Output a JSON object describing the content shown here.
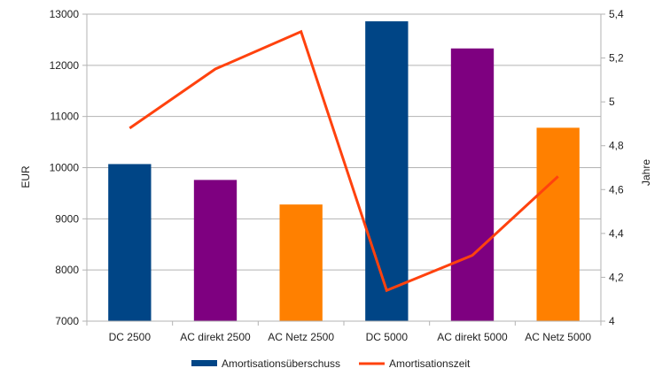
{
  "chart_data": {
    "type": "bar",
    "title": "",
    "categories": [
      "DC 2500",
      "AC direkt 2500",
      "AC Netz 2500",
      "DC 5000",
      "AC direkt 5000",
      "AC Netz 5000"
    ],
    "series": [
      {
        "name": "Amortisationsüberschuss",
        "type": "bar",
        "axis": "left",
        "values": [
          10070,
          9760,
          9280,
          12860,
          12330,
          10780
        ],
        "colors": [
          "#004586",
          "#7e0080",
          "#ff8000",
          "#004586",
          "#7e0080",
          "#ff8000"
        ],
        "legend_color": "#004586"
      },
      {
        "name": "Amortisationszeit",
        "type": "line",
        "axis": "right",
        "values": [
          4.88,
          5.15,
          5.32,
          4.14,
          4.3,
          4.66
        ],
        "color": "#ff420e"
      }
    ],
    "ylabel": "EUR",
    "ylim": [
      7000,
      13000
    ],
    "yticks": [
      "7000",
      "8000",
      "9000",
      "10000",
      "11000",
      "12000",
      "13000"
    ],
    "ytick_values": [
      7000,
      8000,
      9000,
      10000,
      11000,
      12000,
      13000
    ],
    "y2label": "Jahre",
    "y2lim": [
      4,
      5.4
    ],
    "y2ticks": [
      "4",
      "4,2",
      "4,4",
      "4,6",
      "4,8",
      "5",
      "5,2",
      "5,4"
    ],
    "y2tick_values": [
      4,
      4.2,
      4.4,
      4.6,
      4.8,
      5,
      5.2,
      5.4
    ],
    "grid": true,
    "legend_position": "bottom-center"
  }
}
